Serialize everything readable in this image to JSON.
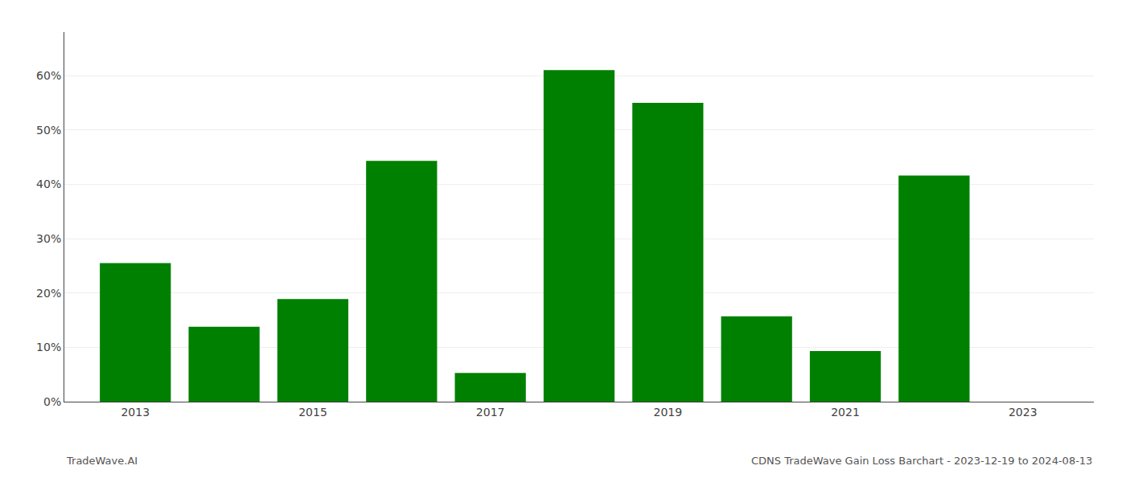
{
  "chart_data": {
    "type": "bar",
    "x": [
      2013,
      2014,
      2015,
      2016,
      2017,
      2018,
      2019,
      2020,
      2021,
      2022
    ],
    "values": [
      0.255,
      0.138,
      0.189,
      0.443,
      0.053,
      0.61,
      0.55,
      0.157,
      0.093,
      0.416
    ],
    "color": "#008000",
    "xlim": [
      2012.2,
      2023.8
    ],
    "xticks": [
      2013,
      2015,
      2017,
      2019,
      2021,
      2023
    ],
    "ylim": [
      0,
      0.68
    ],
    "yticks": [
      {
        "value": 0.0,
        "label": "0%"
      },
      {
        "value": 0.1,
        "label": "10%"
      },
      {
        "value": 0.2,
        "label": "20%"
      },
      {
        "value": 0.3,
        "label": "30%"
      },
      {
        "value": 0.4,
        "label": "40%"
      },
      {
        "value": 0.5,
        "label": "50%"
      },
      {
        "value": 0.6,
        "label": "60%"
      }
    ],
    "grid": true,
    "annotations": [
      "TradeWave.AI",
      "CDNS TradeWave Gain Loss Barchart - 2023-12-19 to 2024-08-13"
    ]
  }
}
